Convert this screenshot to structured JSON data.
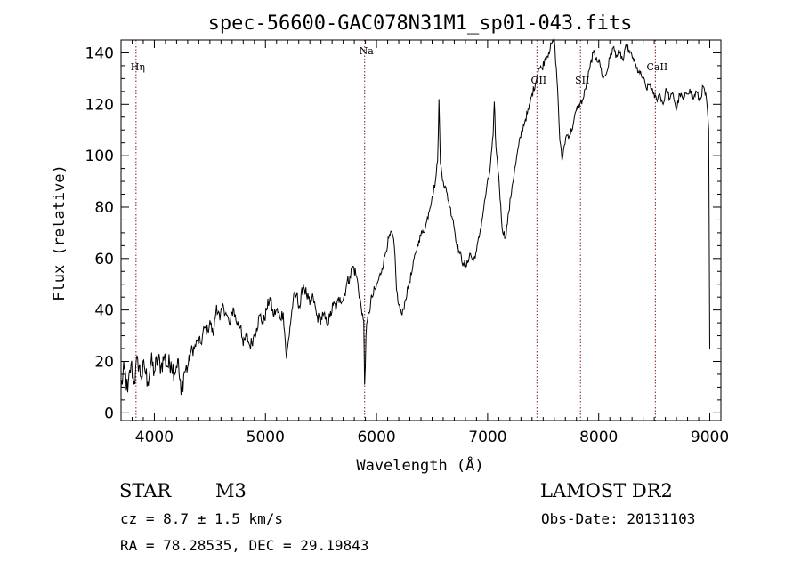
{
  "chart_data": {
    "type": "line",
    "title": "spec-56600-GAC078N31M1_sp01-043.fits",
    "xlabel": "Wavelength (Å)",
    "ylabel": "Flux (relative)",
    "xlim": [
      3700,
      9100
    ],
    "ylim": [
      -3,
      145
    ],
    "xticks": [
      4000,
      5000,
      6000,
      7000,
      8000,
      9000
    ],
    "yticks": [
      0,
      20,
      40,
      60,
      80,
      100,
      120,
      140
    ],
    "grid": false,
    "lines": [
      {
        "label": "Hη",
        "wavelength": 3835
      },
      {
        "label": "Na",
        "wavelength": 5893
      },
      {
        "label": "OII",
        "wavelength": 7444
      },
      {
        "label": "SII",
        "wavelength": 7836
      },
      {
        "label": "CaII",
        "wavelength": 8510
      }
    ],
    "series": [
      {
        "name": "flux",
        "points": [
          [
            3700,
            10
          ],
          [
            3730,
            17
          ],
          [
            3760,
            8
          ],
          [
            3790,
            19
          ],
          [
            3820,
            12
          ],
          [
            3850,
            21
          ],
          [
            3880,
            14
          ],
          [
            3910,
            18
          ],
          [
            3940,
            12
          ],
          [
            3970,
            20
          ],
          [
            4000,
            16
          ],
          [
            4030,
            21
          ],
          [
            4060,
            18
          ],
          [
            4090,
            22
          ],
          [
            4120,
            18
          ],
          [
            4150,
            20
          ],
          [
            4180,
            16
          ],
          [
            4210,
            21
          ],
          [
            4240,
            7
          ],
          [
            4270,
            16
          ],
          [
            4300,
            18
          ],
          [
            4330,
            24
          ],
          [
            4360,
            25
          ],
          [
            4390,
            28
          ],
          [
            4420,
            27
          ],
          [
            4450,
            33
          ],
          [
            4480,
            32
          ],
          [
            4500,
            36
          ],
          [
            4530,
            30
          ],
          [
            4560,
            42
          ],
          [
            4590,
            36
          ],
          [
            4620,
            42
          ],
          [
            4650,
            38
          ],
          [
            4680,
            34
          ],
          [
            4710,
            41
          ],
          [
            4740,
            35
          ],
          [
            4780,
            34
          ],
          [
            4800,
            26
          ],
          [
            4830,
            30
          ],
          [
            4860,
            26
          ],
          [
            4890,
            29
          ],
          [
            4920,
            33
          ],
          [
            4950,
            38
          ],
          [
            4980,
            35
          ],
          [
            5010,
            40
          ],
          [
            5040,
            45
          ],
          [
            5070,
            38
          ],
          [
            5100,
            40
          ],
          [
            5130,
            37
          ],
          [
            5160,
            39
          ],
          [
            5190,
            21
          ],
          [
            5220,
            33
          ],
          [
            5250,
            44
          ],
          [
            5280,
            46
          ],
          [
            5310,
            41
          ],
          [
            5340,
            50
          ],
          [
            5370,
            46
          ],
          [
            5400,
            42
          ],
          [
            5430,
            45
          ],
          [
            5460,
            38
          ],
          [
            5490,
            36
          ],
          [
            5520,
            38
          ],
          [
            5550,
            35
          ],
          [
            5580,
            37
          ],
          [
            5610,
            42
          ],
          [
            5640,
            41
          ],
          [
            5670,
            45
          ],
          [
            5700,
            44
          ],
          [
            5730,
            50
          ],
          [
            5760,
            53
          ],
          [
            5790,
            57
          ],
          [
            5820,
            53
          ],
          [
            5850,
            45
          ],
          [
            5870,
            38
          ],
          [
            5885,
            36
          ],
          [
            5893,
            11
          ],
          [
            5905,
            30
          ],
          [
            5930,
            39
          ],
          [
            5960,
            45
          ],
          [
            5990,
            48
          ],
          [
            6020,
            52
          ],
          [
            6050,
            56
          ],
          [
            6080,
            62
          ],
          [
            6110,
            68
          ],
          [
            6140,
            70
          ],
          [
            6160,
            65
          ],
          [
            6180,
            48
          ],
          [
            6200,
            42
          ],
          [
            6230,
            38
          ],
          [
            6260,
            44
          ],
          [
            6290,
            50
          ],
          [
            6320,
            55
          ],
          [
            6350,
            62
          ],
          [
            6380,
            67
          ],
          [
            6410,
            70
          ],
          [
            6440,
            72
          ],
          [
            6470,
            78
          ],
          [
            6500,
            84
          ],
          [
            6530,
            90
          ],
          [
            6550,
            98
          ],
          [
            6562,
            122
          ],
          [
            6575,
            97
          ],
          [
            6600,
            90
          ],
          [
            6630,
            86
          ],
          [
            6660,
            80
          ],
          [
            6690,
            75
          ],
          [
            6720,
            66
          ],
          [
            6750,
            62
          ],
          [
            6780,
            58
          ],
          [
            6810,
            57
          ],
          [
            6840,
            62
          ],
          [
            6870,
            59
          ],
          [
            6900,
            63
          ],
          [
            6930,
            70
          ],
          [
            6960,
            78
          ],
          [
            6990,
            87
          ],
          [
            7020,
            94
          ],
          [
            7050,
            108
          ],
          [
            7060,
            121
          ],
          [
            7075,
            103
          ],
          [
            7100,
            92
          ],
          [
            7130,
            72
          ],
          [
            7160,
            68
          ],
          [
            7190,
            78
          ],
          [
            7220,
            88
          ],
          [
            7250,
            96
          ],
          [
            7280,
            104
          ],
          [
            7310,
            110
          ],
          [
            7340,
            114
          ],
          [
            7370,
            118
          ],
          [
            7400,
            124
          ],
          [
            7430,
            128
          ],
          [
            7460,
            134
          ],
          [
            7490,
            134
          ],
          [
            7520,
            138
          ],
          [
            7550,
            140
          ],
          [
            7580,
            144
          ],
          [
            7600,
            145
          ],
          [
            7630,
            126
          ],
          [
            7650,
            106
          ],
          [
            7670,
            98
          ],
          [
            7690,
            104
          ],
          [
            7710,
            108
          ],
          [
            7740,
            108
          ],
          [
            7770,
            112
          ],
          [
            7800,
            118
          ],
          [
            7830,
            120
          ],
          [
            7860,
            122
          ],
          [
            7890,
            128
          ],
          [
            7920,
            134
          ],
          [
            7950,
            140
          ],
          [
            7980,
            138
          ],
          [
            8010,
            136
          ],
          [
            8040,
            130
          ],
          [
            8070,
            132
          ],
          [
            8100,
            138
          ],
          [
            8130,
            142
          ],
          [
            8160,
            139
          ],
          [
            8190,
            140
          ],
          [
            8220,
            137
          ],
          [
            8250,
            143
          ],
          [
            8280,
            140
          ],
          [
            8310,
            138
          ],
          [
            8340,
            134
          ],
          [
            8370,
            132
          ],
          [
            8400,
            130
          ],
          [
            8430,
            126
          ],
          [
            8460,
            128
          ],
          [
            8490,
            124
          ],
          [
            8520,
            122
          ],
          [
            8550,
            124
          ],
          [
            8580,
            120
          ],
          [
            8610,
            126
          ],
          [
            8640,
            122
          ],
          [
            8670,
            124
          ],
          [
            8700,
            118
          ],
          [
            8730,
            124
          ],
          [
            8760,
            122
          ],
          [
            8790,
            124
          ],
          [
            8820,
            126
          ],
          [
            8850,
            122
          ],
          [
            8880,
            125
          ],
          [
            8910,
            121
          ],
          [
            8940,
            127
          ],
          [
            8970,
            122
          ],
          [
            8990,
            110
          ],
          [
            9000,
            25
          ]
        ]
      }
    ]
  },
  "info": {
    "object_class": "STAR",
    "subclass": "M3",
    "cz": "cz = 8.7 ± 1.5 km/s",
    "coords": "RA =  78.28535, DEC =  29.19843",
    "survey": "LAMOST DR2",
    "obs_date": "Obs-Date: 20131103"
  }
}
